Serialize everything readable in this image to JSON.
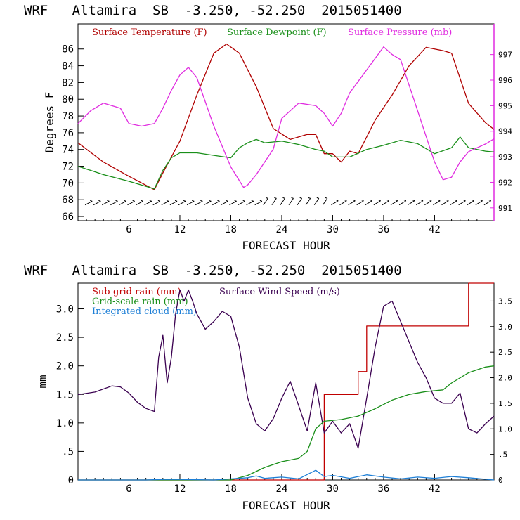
{
  "chart_data": [
    {
      "type": "line",
      "title": "WRF   Altamira  SB  -3.250, -52.250  2015051400",
      "xlabel": "FORECAST HOUR",
      "ylabel": "Degrees F",
      "xlim": [
        0,
        49
      ],
      "ylim": [
        65.5,
        89
      ],
      "y2lim": [
        990.5,
        998.2
      ],
      "x_ticks": [
        6,
        12,
        18,
        24,
        30,
        36,
        42
      ],
      "y_ticks": [
        66,
        68,
        70,
        72,
        74,
        76,
        78,
        80,
        82,
        84,
        86
      ],
      "y2_ticks": [
        991,
        992,
        993,
        994,
        995,
        996,
        997
      ],
      "series": [
        {
          "name": "Surface Temperature (F)",
          "color": "#b00000",
          "axis": "left",
          "x": [
            0,
            3,
            6,
            9,
            10,
            12,
            14,
            16,
            17.5,
            19,
            21,
            23,
            25,
            27,
            28,
            29,
            30,
            31,
            32,
            33,
            35,
            37,
            39,
            41,
            43,
            44,
            45,
            46,
            48,
            49
          ],
          "y": [
            74.8,
            72.5,
            70.8,
            69.2,
            71.2,
            75,
            80.5,
            85.5,
            86.6,
            85.5,
            81.5,
            76.5,
            75.2,
            75.8,
            75.8,
            73.5,
            73.5,
            72.5,
            73.8,
            73.5,
            77.5,
            80.5,
            84,
            86.2,
            85.8,
            85.5,
            82.5,
            79.5,
            77.2,
            76.4
          ]
        },
        {
          "name": "Surface Dewpoint (F)",
          "color": "#1a8f1a",
          "axis": "left",
          "x": [
            0,
            3,
            6,
            9,
            10,
            11,
            12,
            14,
            16,
            18,
            19,
            20,
            21,
            22,
            24,
            26,
            28,
            29,
            30,
            32,
            34,
            36,
            38,
            40,
            42,
            44,
            45,
            46,
            48,
            49
          ],
          "y": [
            72,
            71,
            70.2,
            69.3,
            71.5,
            73,
            73.6,
            73.6,
            73.3,
            73,
            74.2,
            74.8,
            75.2,
            74.8,
            75,
            74.6,
            74,
            73.8,
            73.1,
            73.1,
            74,
            74.5,
            75.1,
            74.7,
            73.5,
            74.2,
            75.5,
            74.2,
            73.8,
            73.7
          ]
        },
        {
          "name": "Surface Pressure (mb)",
          "color": "#e02ce0",
          "axis": "right",
          "x": [
            0,
            1.5,
            3,
            5,
            6,
            7.5,
            9,
            10,
            11,
            12,
            13,
            14,
            16,
            18,
            19.5,
            20,
            21,
            23,
            24,
            26,
            28,
            29,
            30,
            31,
            32,
            34,
            36,
            37,
            38,
            40,
            42,
            43,
            44,
            45,
            46,
            48,
            49
          ],
          "y": [
            994.3,
            994.8,
            995.1,
            994.9,
            994.3,
            994.2,
            994.3,
            994.9,
            995.6,
            996.2,
            996.5,
            996.1,
            994.2,
            992.6,
            991.8,
            991.9,
            992.3,
            993.3,
            994.5,
            995.1,
            995,
            994.7,
            994.2,
            994.7,
            995.5,
            996.4,
            997.3,
            997,
            996.8,
            994.8,
            992.8,
            992.1,
            992.2,
            992.8,
            993.2,
            993.5,
            993.7
          ]
        }
      ]
    },
    {
      "type": "line",
      "title": "WRF   Altamira  SB  -3.250, -52.250  2015051400",
      "xlabel": "FORECAST HOUR",
      "ylabel": "mm",
      "xlim": [
        0,
        49
      ],
      "ylim": [
        0,
        3.45
      ],
      "y2lim": [
        0,
        3.85
      ],
      "x_ticks": [
        6,
        12,
        18,
        24,
        30,
        36,
        42
      ],
      "y_ticks": [
        "0",
        ".5",
        "1.0",
        "1.5",
        "2.0",
        "2.5",
        "3.0"
      ],
      "y2_ticks": [
        "0",
        ".5",
        "1.0",
        "1.5",
        "2.0",
        "2.5",
        "3.0",
        "3.5"
      ],
      "series": [
        {
          "name": "Sub-grid rain (mm)",
          "color": "#c00000",
          "axis": "left",
          "x": [
            0,
            28,
            29,
            30,
            32,
            33,
            34,
            35,
            40,
            43,
            45,
            46,
            49
          ],
          "y": [
            0,
            0,
            1.5,
            1.5,
            1.5,
            1.9,
            2.7,
            2.7,
            2.7,
            2.7,
            2.7,
            3.45,
            3.45
          ]
        },
        {
          "name": "Surface Wind Speed (m/s)",
          "color": "#3a0050",
          "axis": "right",
          "x": [
            0,
            2,
            4,
            5,
            6,
            7,
            8,
            9,
            9.5,
            10,
            10.5,
            11,
            11.5,
            12,
            12.5,
            13,
            13.5,
            14,
            15,
            16,
            17,
            18,
            19,
            20,
            21,
            22,
            23,
            24,
            25,
            26,
            27,
            28,
            29,
            30,
            31,
            32,
            33,
            34,
            35,
            36,
            37,
            38,
            39,
            40,
            41,
            42,
            43,
            44,
            45,
            46,
            47,
            48,
            49
          ],
          "y": [
            1.67,
            1.72,
            1.84,
            1.82,
            1.7,
            1.52,
            1.4,
            1.34,
            2.4,
            2.83,
            1.9,
            2.4,
            3.25,
            3.72,
            3.5,
            3.72,
            3.5,
            3.25,
            2.95,
            3.1,
            3.3,
            3.2,
            2.6,
            1.6,
            1.1,
            0.96,
            1.2,
            1.6,
            1.93,
            1.45,
            0.96,
            1.9,
            0.92,
            1.15,
            0.92,
            1.1,
            0.62,
            1.6,
            2.6,
            3.4,
            3.5,
            3.1,
            2.7,
            2.3,
            2.0,
            1.6,
            1.5,
            1.5,
            1.7,
            1.0,
            0.92,
            1.1,
            1.25
          ]
        },
        {
          "name": "Grid-scale rain (mm)",
          "color": "#1a8f1a",
          "axis": "left",
          "x": [
            0,
            18,
            20,
            22,
            24,
            26,
            27,
            28,
            29,
            31,
            33,
            35,
            37,
            39,
            41,
            43,
            44,
            46,
            48,
            49
          ],
          "y": [
            0,
            0,
            0.08,
            0.22,
            0.32,
            0.38,
            0.5,
            0.9,
            1.03,
            1.06,
            1.12,
            1.25,
            1.4,
            1.5,
            1.55,
            1.58,
            1.7,
            1.88,
            1.98,
            2.0
          ]
        },
        {
          "name": "Integrated cloud (mm)",
          "color": "#1e7fd6",
          "axis": "left",
          "x": [
            0,
            8,
            10,
            12,
            16,
            18,
            20,
            21,
            22,
            24,
            26,
            28,
            29,
            30,
            32,
            34,
            36,
            38,
            40,
            42,
            44,
            46,
            49
          ],
          "y": [
            0,
            0,
            0.01,
            0.01,
            0,
            0.02,
            0.04,
            0.07,
            0.03,
            0.05,
            0.02,
            0.17,
            0.06,
            0.08,
            0.03,
            0.09,
            0.05,
            0.02,
            0.05,
            0.03,
            0.06,
            0.04,
            0
          ]
        }
      ]
    }
  ]
}
